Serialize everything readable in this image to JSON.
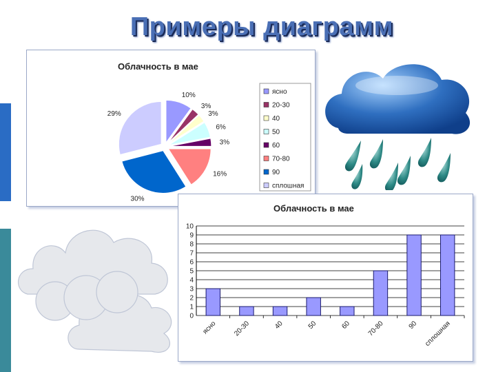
{
  "slide": {
    "title": "Примеры диаграмм"
  },
  "chart_data": [
    {
      "type": "pie",
      "title": "Облачность в мае",
      "categories": [
        "ясно",
        "20-30",
        "40",
        "50",
        "60",
        "70-80",
        "90",
        "сплошная"
      ],
      "values": [
        10,
        3,
        3,
        6,
        3,
        16,
        30,
        29
      ],
      "data_labels": [
        "10%",
        "3%",
        "3%",
        "6%",
        "3%",
        "16%",
        "30%",
        "29%"
      ],
      "colors": [
        "#9999ff",
        "#993366",
        "#ffffcc",
        "#ccffff",
        "#660066",
        "#ff8080",
        "#0066cc",
        "#ccccff"
      ],
      "legend": "right"
    },
    {
      "type": "bar",
      "title": "Облачность в мае",
      "categories": [
        "ясно",
        "20-30",
        "40",
        "50",
        "60",
        "70-80",
        "90",
        "сплошная"
      ],
      "values": [
        3,
        1,
        1,
        2,
        1,
        5,
        9,
        9
      ],
      "yticks": [
        "0",
        "1",
        "2",
        "3",
        "4",
        "5",
        "6",
        "7",
        "8",
        "9",
        "10"
      ],
      "ylim": [
        0,
        10
      ],
      "grid": true,
      "color": "#9999ff"
    }
  ],
  "theme": {
    "title_color": "#4a6fb5",
    "bar_edge": "#1a1a6e",
    "cloud_blue": "#2f6fc0",
    "cloud_grey": "#e6e8ec"
  }
}
